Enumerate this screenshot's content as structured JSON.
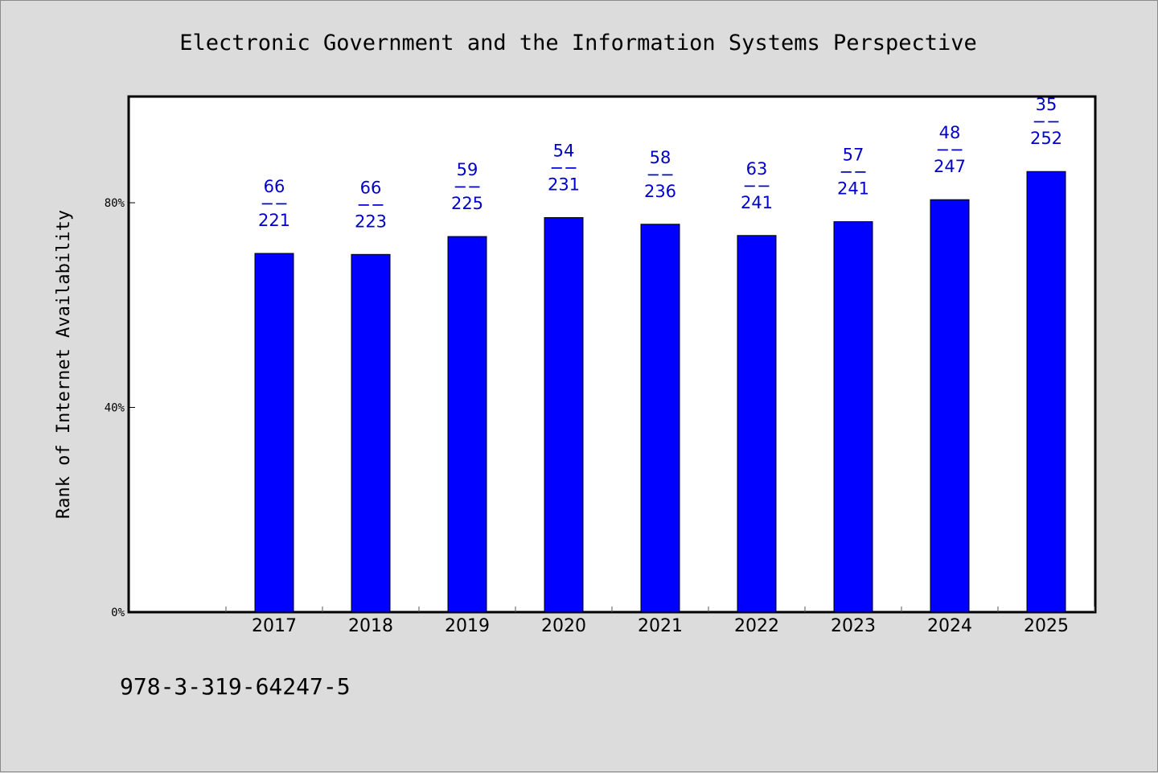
{
  "chart_data": {
    "type": "bar",
    "title": "Electronic Government and the Information Systems Perspective",
    "xlabel": "",
    "ylabel": "Rank of Internet Availability",
    "categories": [
      "2017",
      "2018",
      "2019",
      "2020",
      "2021",
      "2022",
      "2023",
      "2024",
      "2025"
    ],
    "values": [
      70.1,
      69.9,
      73.4,
      77.1,
      75.8,
      73.6,
      76.3,
      80.6,
      86.1
    ],
    "labels": [
      {
        "top": "66",
        "sep": "−−",
        "bottom": "221"
      },
      {
        "top": "66",
        "sep": "−−",
        "bottom": "223"
      },
      {
        "top": "59",
        "sep": "−−",
        "bottom": "225"
      },
      {
        "top": "54",
        "sep": "−−",
        "bottom": "231"
      },
      {
        "top": "58",
        "sep": "−−",
        "bottom": "236"
      },
      {
        "top": "63",
        "sep": "−−",
        "bottom": "241"
      },
      {
        "top": "57",
        "sep": "−−",
        "bottom": "241"
      },
      {
        "top": "48",
        "sep": "−−",
        "bottom": "247"
      },
      {
        "top": "35",
        "sep": "−−",
        "bottom": "252"
      }
    ],
    "yticks": [
      {
        "value": 0,
        "label": "0%"
      },
      {
        "value": 40,
        "label": "40%"
      },
      {
        "value": 80,
        "label": "80%"
      }
    ],
    "ylim": [
      0,
      100.6
    ],
    "bar_color": "#0000ff",
    "label_color": "#0000cc",
    "grid": false,
    "legend": "none"
  },
  "footer": {
    "isbn": "978-3-319-64247-5"
  }
}
